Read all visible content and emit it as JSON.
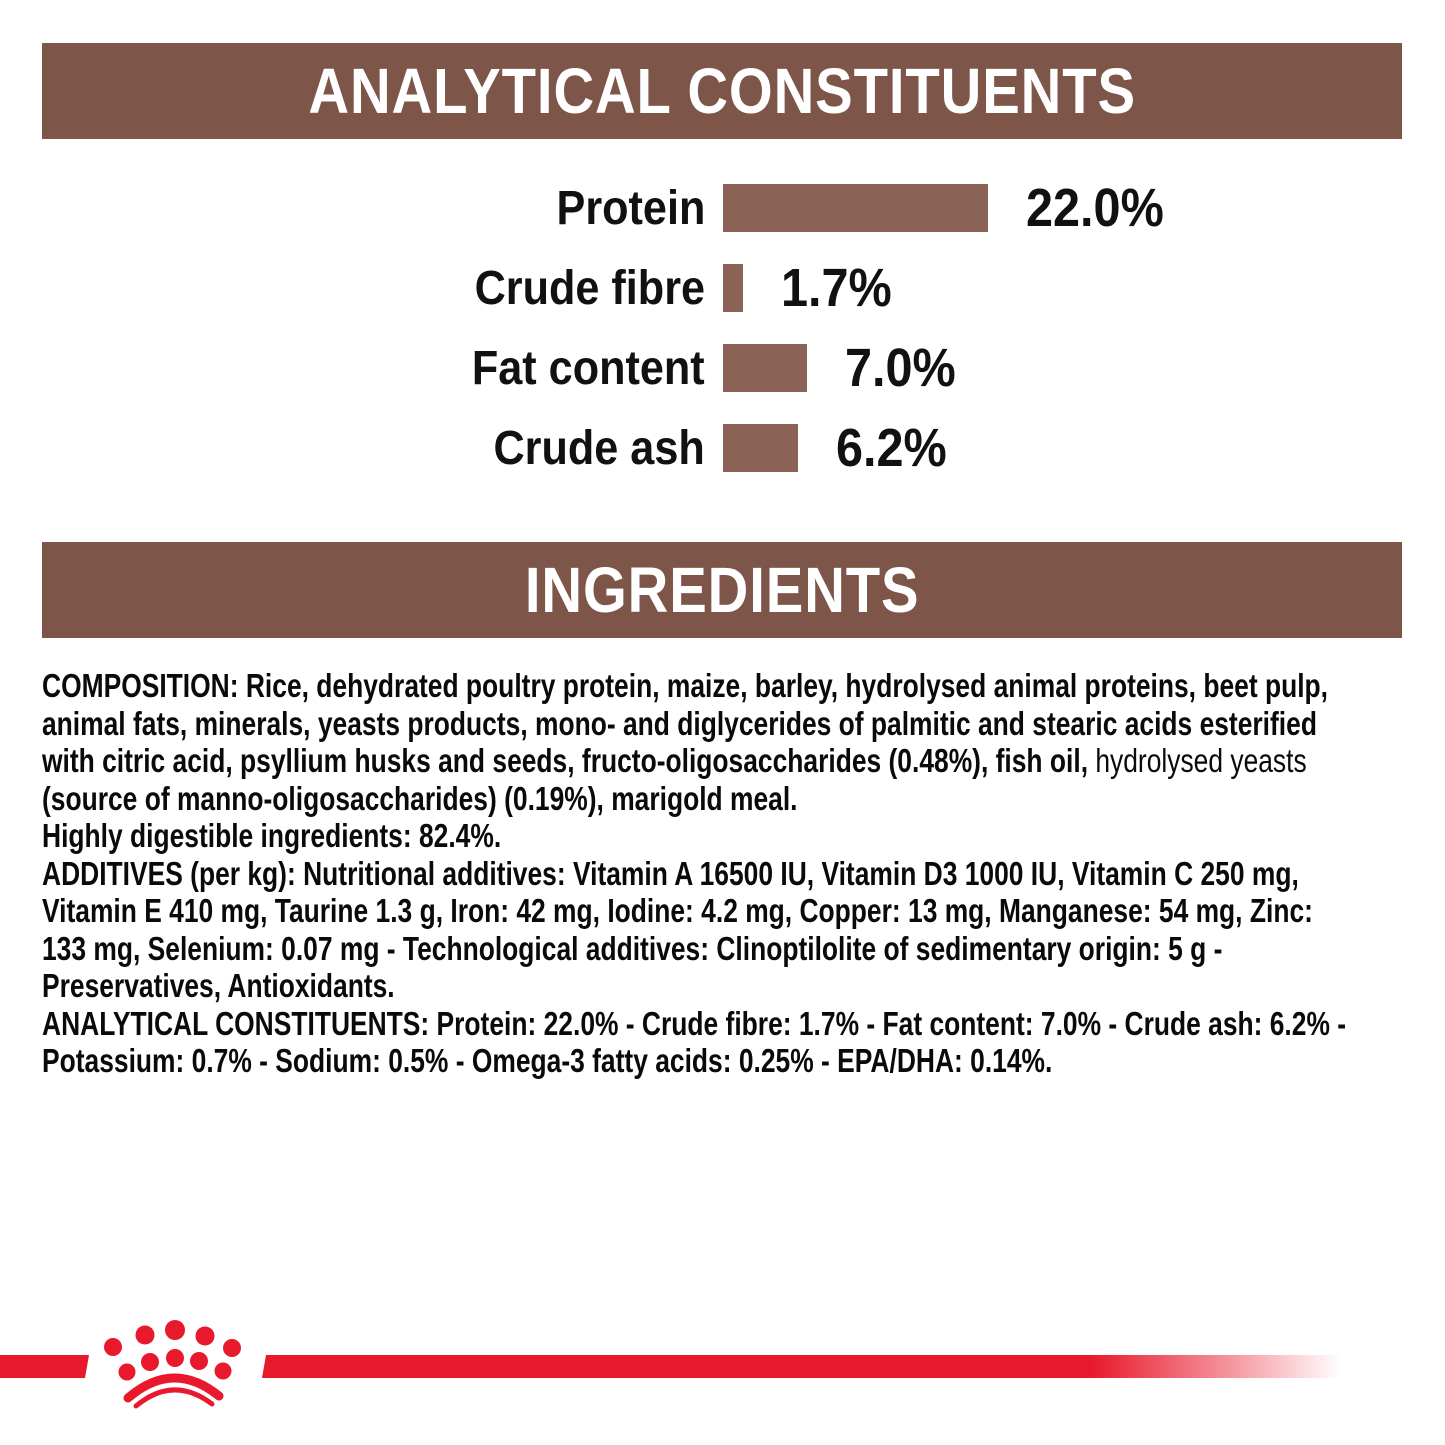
{
  "brand_colors": {
    "brown": "#7E5549",
    "bar_brown": "#8A6356",
    "red": "#E8192C"
  },
  "analytical": {
    "header": "ANALYTICAL CONSTITUENTS",
    "rows": [
      {
        "label": "Protein",
        "value": 22.0,
        "value_label": "22.0%"
      },
      {
        "label": "Crude fibre",
        "value": 1.7,
        "value_label": "1.7%"
      },
      {
        "label": "Fat content",
        "value": 7.0,
        "value_label": "7.0%"
      },
      {
        "label": "Crude ash",
        "value": 6.2,
        "value_label": "6.2%"
      }
    ]
  },
  "chart_data": {
    "type": "bar",
    "orientation": "horizontal",
    "title": "ANALYTICAL CONSTITUENTS",
    "categories": [
      "Protein",
      "Crude fibre",
      "Fat content",
      "Crude ash"
    ],
    "values": [
      22.0,
      1.7,
      7.0,
      6.2
    ],
    "data_labels": [
      "22.0%",
      "1.7%",
      "7.0%",
      "6.2%"
    ],
    "xlabel": "",
    "ylabel": "",
    "xlim": [
      0,
      22
    ],
    "grid": false,
    "legend": false,
    "bar_color": "#8A6356"
  },
  "ingredients": {
    "header": "INGREDIENTS",
    "lines": [
      {
        "b": "COMPOSITION: Rice, dehydrated poultry protein, maize, barley, hydrolysed animal proteins, beet pulp,"
      },
      {
        "b": "animal fats, minerals, yeasts products, mono- and diglycerides of palmitic and stearic acids esterified"
      },
      {
        "b": "with citric acid, psyllium husks and seeds, fructo-oligosaccharides (0.48%), fish oil, ",
        "l": "hydrolysed yeasts"
      },
      {
        "b": "(source of manno-oligosaccharides) (0.19%), marigold meal."
      },
      {
        "b": "Highly digestible ingredients: 82.4%."
      },
      {
        "b": "ADDITIVES (per kg): Nutritional additives: Vitamin A 16500 IU, Vitamin D3 1000 IU, Vitamin C 250 mg,"
      },
      {
        "b": "Vitamin E 410 mg, Taurine 1.3 g, Iron: 42 mg, Iodine: 4.2 mg, Copper: 13 mg, Manganese: 54 mg, Zinc:"
      },
      {
        "b": "133 mg, Selenium: 0.07 mg - Technological additives: Clinoptilolite of sedimentary origin: 5 g -"
      },
      {
        "b": "Preservatives, Antioxidants."
      },
      {
        "b": "ANALYTICAL CONSTITUENTS: Protein: 22.0% - Crude fibre: 1.7% - Fat content: 7.0% - Crude ash: 6.2% -"
      },
      {
        "b": "Potassium: 0.7% - Sodium: 0.5% - Omega-3 fatty acids: 0.25% - EPA/DHA: 0.14%."
      }
    ]
  }
}
